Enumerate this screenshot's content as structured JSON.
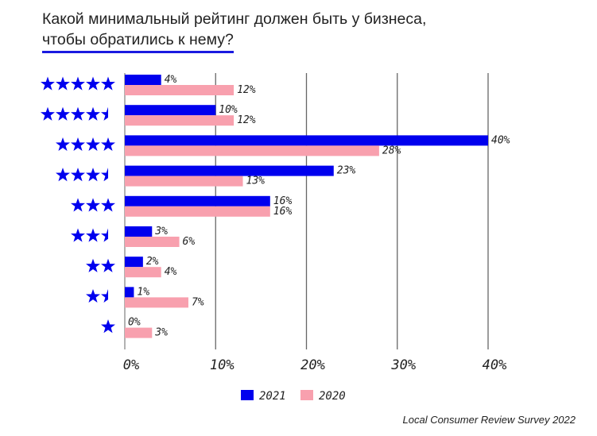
{
  "title_line1": "Какой минимальный рейтинг должен быть у бизнеса,",
  "title_line2": "чтобы обратились к нему?",
  "source": "Local Consumer Review Survey 2022",
  "chart_data": {
    "type": "bar",
    "orientation": "horizontal",
    "categories": [
      5,
      4.5,
      4,
      3.5,
      3,
      2.5,
      2,
      1.5,
      1
    ],
    "category_display": "star-rating-icons",
    "series": [
      {
        "name": "2021",
        "color": "#0000ee",
        "values": [
          4,
          10,
          40,
          23,
          16,
          3,
          2,
          1,
          0
        ]
      },
      {
        "name": "2020",
        "color": "#f8a0ae",
        "values": [
          12,
          12,
          28,
          13,
          16,
          6,
          4,
          7,
          3
        ]
      }
    ],
    "value_labels": {
      "2021": [
        "4%",
        "10%",
        "40%",
        "23%",
        "16%",
        "3%",
        "2%",
        "1%",
        "0%"
      ],
      "2020": [
        "12%",
        "12%",
        "28%",
        "13%",
        "16%",
        "6%",
        "4%",
        "7%",
        "3%"
      ]
    },
    "xlim": [
      0,
      40
    ],
    "xticks": [
      "0%",
      "10%",
      "20%",
      "30%",
      "40%"
    ],
    "xtick_values": [
      0,
      10,
      20,
      30,
      40
    ],
    "grid": "vertical",
    "legend": "bottom-center",
    "star_color": "#0000ee"
  }
}
